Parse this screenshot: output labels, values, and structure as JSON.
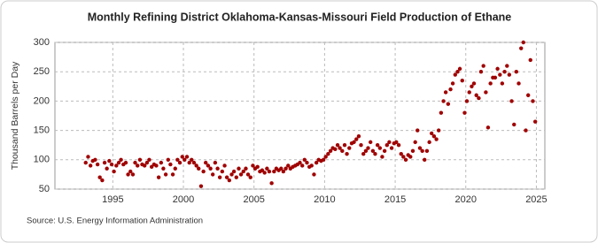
{
  "chart_data": {
    "type": "scatter",
    "title": "Monthly Refining District Oklahoma-Kansas-Missouri Field Production of Ethane",
    "ylabel": "Thousand Barrels per Day",
    "source": "Source: U.S. Energy Information Administration",
    "color": "#a00000",
    "xlim": [
      1990.9,
      2025.6
    ],
    "xticks": [
      1995,
      2000,
      2005,
      2010,
      2015,
      2020,
      2025
    ],
    "ylim": [
      50,
      300
    ],
    "yticks": [
      50,
      100,
      150,
      200,
      250,
      300
    ],
    "grid": true,
    "x": [
      1993.08,
      1993.25,
      1993.42,
      1993.58,
      1993.75,
      1993.92,
      1994.08,
      1994.25,
      1994.42,
      1994.58,
      1994.75,
      1994.92,
      1995.08,
      1995.25,
      1995.42,
      1995.58,
      1995.75,
      1995.92,
      1996.08,
      1996.25,
      1996.42,
      1996.58,
      1996.75,
      1996.92,
      1997.08,
      1997.25,
      1997.42,
      1997.58,
      1997.75,
      1997.92,
      1998.08,
      1998.25,
      1998.42,
      1998.58,
      1998.75,
      1998.92,
      1999.08,
      1999.25,
      1999.42,
      1999.58,
      1999.75,
      1999.92,
      2000.08,
      2000.25,
      2000.42,
      2000.58,
      2000.75,
      2000.92,
      2001.08,
      2001.25,
      2001.42,
      2001.58,
      2001.75,
      2001.92,
      2002.08,
      2002.25,
      2002.42,
      2002.58,
      2002.75,
      2002.92,
      2003.08,
      2003.25,
      2003.42,
      2003.58,
      2003.75,
      2003.92,
      2004.08,
      2004.25,
      2004.42,
      2004.58,
      2004.75,
      2004.92,
      2005.08,
      2005.25,
      2005.42,
      2005.58,
      2005.75,
      2005.92,
      2006.08,
      2006.25,
      2006.42,
      2006.58,
      2006.75,
      2006.92,
      2007.08,
      2007.25,
      2007.42,
      2007.58,
      2007.75,
      2007.92,
      2008.08,
      2008.25,
      2008.42,
      2008.58,
      2008.75,
      2008.92,
      2009.08,
      2009.25,
      2009.42,
      2009.58,
      2009.75,
      2009.92,
      2010.08,
      2010.25,
      2010.42,
      2010.58,
      2010.75,
      2010.92,
      2011.08,
      2011.25,
      2011.42,
      2011.58,
      2011.75,
      2011.92,
      2012.08,
      2012.25,
      2012.42,
      2012.58,
      2012.75,
      2012.92,
      2013.08,
      2013.25,
      2013.42,
      2013.58,
      2013.75,
      2013.92,
      2014.08,
      2014.25,
      2014.42,
      2014.58,
      2014.75,
      2014.92,
      2015.08,
      2015.25,
      2015.42,
      2015.58,
      2015.75,
      2015.92,
      2016.08,
      2016.25,
      2016.42,
      2016.58,
      2016.75,
      2016.92,
      2017.08,
      2017.25,
      2017.42,
      2017.58,
      2017.75,
      2017.92,
      2018.08,
      2018.25,
      2018.42,
      2018.58,
      2018.75,
      2018.92,
      2019.08,
      2019.25,
      2019.42,
      2019.58,
      2019.75,
      2019.92,
      2020.08,
      2020.25,
      2020.42,
      2020.58,
      2020.75,
      2020.92,
      2021.08,
      2021.25,
      2021.42,
      2021.58,
      2021.75,
      2021.92,
      2022.08,
      2022.25,
      2022.42,
      2022.58,
      2022.75,
      2022.92,
      2023.08,
      2023.25,
      2023.42,
      2023.58,
      2023.75,
      2023.92,
      2024.08,
      2024.25,
      2024.42,
      2024.58,
      2024.75,
      2024.92
    ],
    "values": [
      95,
      105,
      90,
      98,
      100,
      92,
      70,
      65,
      95,
      85,
      98,
      92,
      80,
      90,
      95,
      100,
      92,
      95,
      75,
      80,
      75,
      95,
      90,
      100,
      92,
      90,
      95,
      100,
      88,
      92,
      90,
      70,
      95,
      85,
      75,
      100,
      92,
      75,
      85,
      100,
      95,
      105,
      100,
      105,
      95,
      100,
      95,
      90,
      85,
      55,
      80,
      95,
      90,
      85,
      75,
      95,
      85,
      70,
      80,
      90,
      70,
      65,
      75,
      80,
      70,
      85,
      75,
      80,
      85,
      75,
      70,
      90,
      85,
      88,
      80,
      82,
      78,
      85,
      80,
      60,
      80,
      85,
      82,
      85,
      80,
      85,
      90,
      85,
      88,
      90,
      92,
      95,
      90,
      100,
      95,
      88,
      90,
      75,
      95,
      100,
      98,
      100,
      105,
      110,
      115,
      120,
      118,
      125,
      120,
      115,
      125,
      110,
      120,
      128,
      130,
      135,
      140,
      125,
      110,
      115,
      120,
      130,
      115,
      110,
      125,
      120,
      105,
      115,
      125,
      130,
      120,
      128,
      130,
      125,
      110,
      105,
      100,
      108,
      105,
      115,
      130,
      150,
      120,
      115,
      100,
      115,
      130,
      145,
      140,
      135,
      150,
      180,
      200,
      215,
      195,
      220,
      230,
      245,
      250,
      255,
      235,
      180,
      200,
      215,
      225,
      230,
      210,
      205,
      250,
      260,
      215,
      155,
      230,
      240,
      240,
      255,
      245,
      230,
      250,
      260,
      245,
      200,
      160,
      250,
      230,
      290,
      300,
      150,
      210,
      270,
      200,
      165
    ]
  }
}
